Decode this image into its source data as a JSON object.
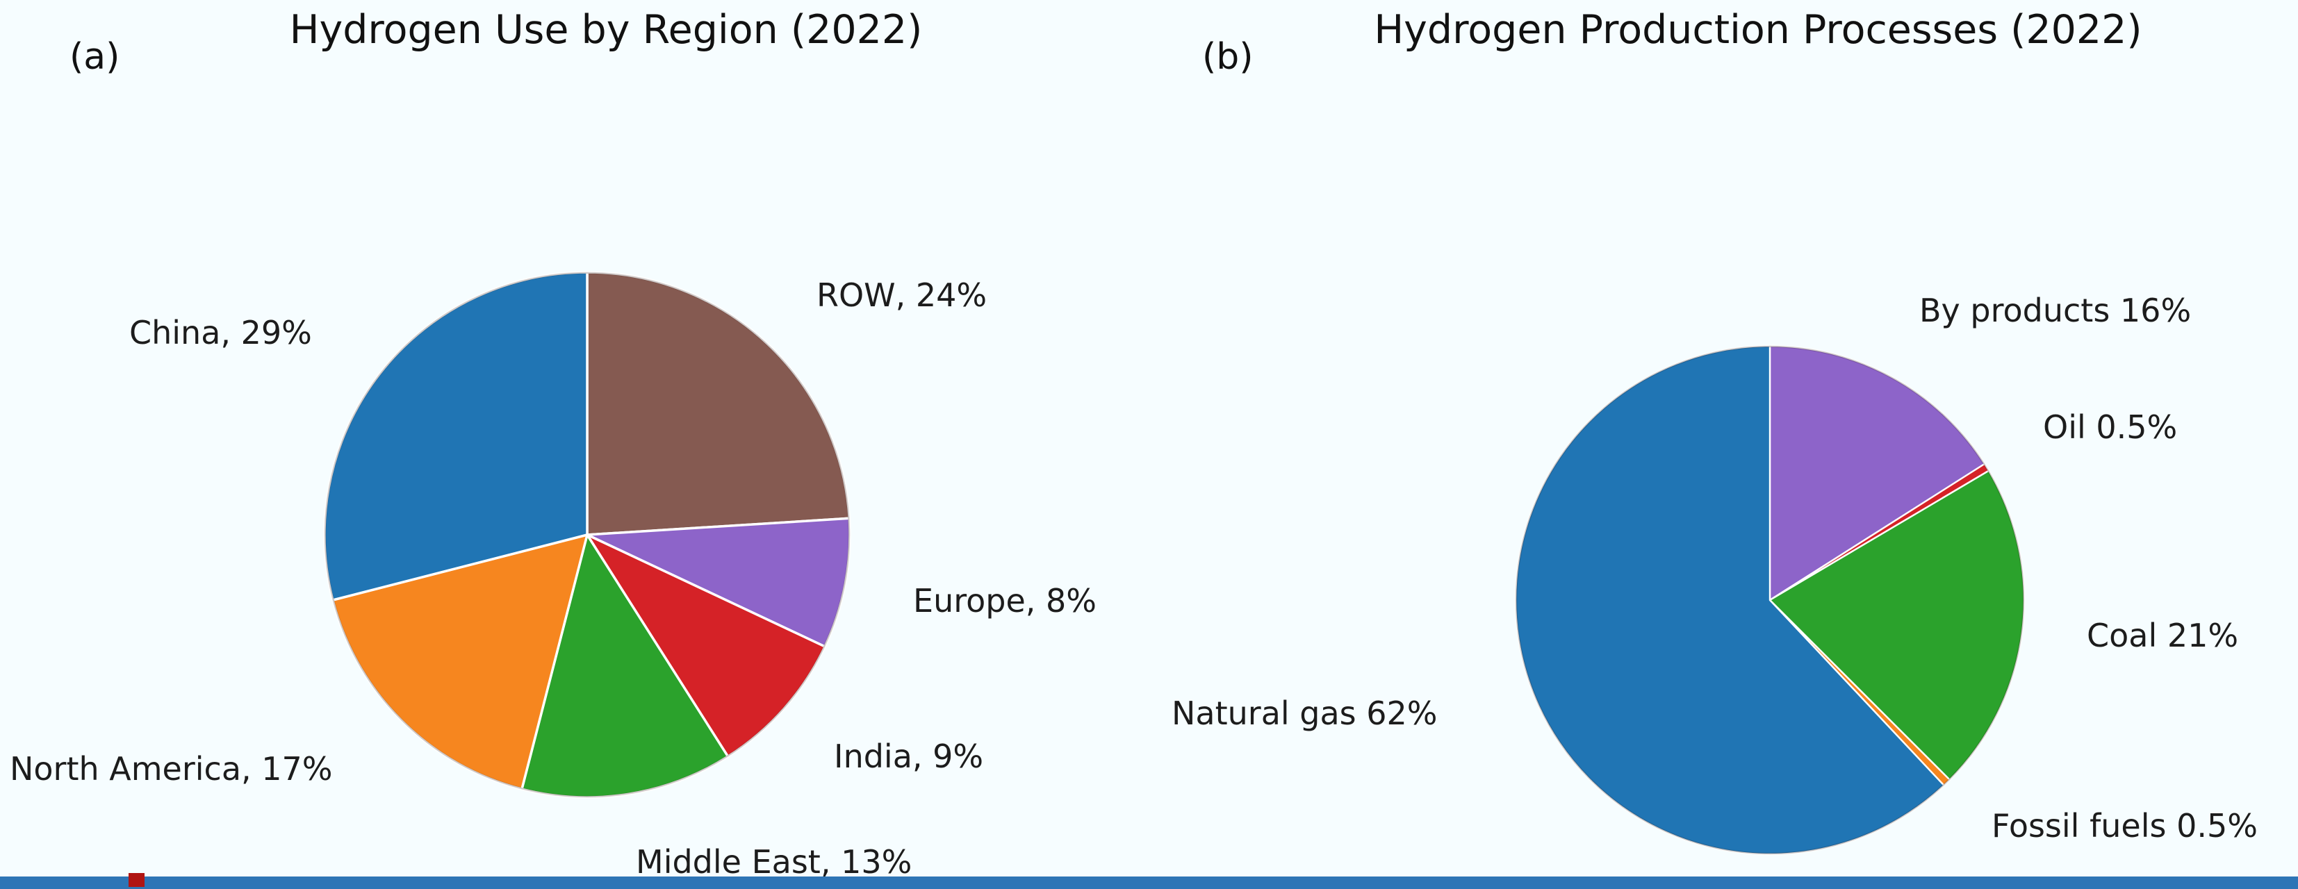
{
  "figure": {
    "background_color": "#f6fdff",
    "text_color": "#1c1c1c",
    "footer_strip_color": "#2e75b6",
    "footer_mark_color": "#b01513"
  },
  "panels": [
    {
      "tag": "(a)",
      "title": "Hydrogen Use by Region (2022)"
    },
    {
      "tag": "(b)",
      "title": "Hydrogen Production Processes (2022)"
    }
  ],
  "chart_data": [
    {
      "type": "pie",
      "title": "Hydrogen Use by Region (2022)",
      "panel_tag": "(a)",
      "unit": "%",
      "start_angle_deg": 90,
      "direction": "clockwise",
      "legend": "none (direct labels)",
      "slices": [
        {
          "label": "ROW",
          "value": 24,
          "display": "ROW, 24%",
          "color": "#855a51"
        },
        {
          "label": "Europe",
          "value": 8,
          "display": "Europe, 8%",
          "color": "#8d64c9"
        },
        {
          "label": "India",
          "value": 9,
          "display": "India, 9%",
          "color": "#d52227"
        },
        {
          "label": "Middle East",
          "value": 13,
          "display": "Middle East, 13%",
          "color": "#2ba22c"
        },
        {
          "label": "North America",
          "value": 17,
          "display": "North America, 17%",
          "color": "#f6861f"
        },
        {
          "label": "China",
          "value": 29,
          "display": "China, 29%",
          "color": "#2075b4"
        }
      ]
    },
    {
      "type": "pie",
      "title": "Hydrogen Production Processes (2022)",
      "panel_tag": "(b)",
      "unit": "%",
      "start_angle_deg": 90,
      "direction": "clockwise",
      "legend": "none (direct labels)",
      "slices": [
        {
          "label": "By products",
          "value": 16,
          "display": "By products 16%",
          "color": "#8d64c9"
        },
        {
          "label": "Oil",
          "value": 0.5,
          "display": "Oil 0.5%",
          "color": "#d52227"
        },
        {
          "label": "Coal",
          "value": 21,
          "display": "Coal 21%",
          "color": "#2ba22c"
        },
        {
          "label": "Fossil fuels",
          "value": 0.5,
          "display": "Fossil fuels 0.5%",
          "color": "#f6861f"
        },
        {
          "label": "Natural gas",
          "value": 62,
          "display": "Natural gas 62%",
          "color": "#2075b4"
        }
      ]
    }
  ]
}
